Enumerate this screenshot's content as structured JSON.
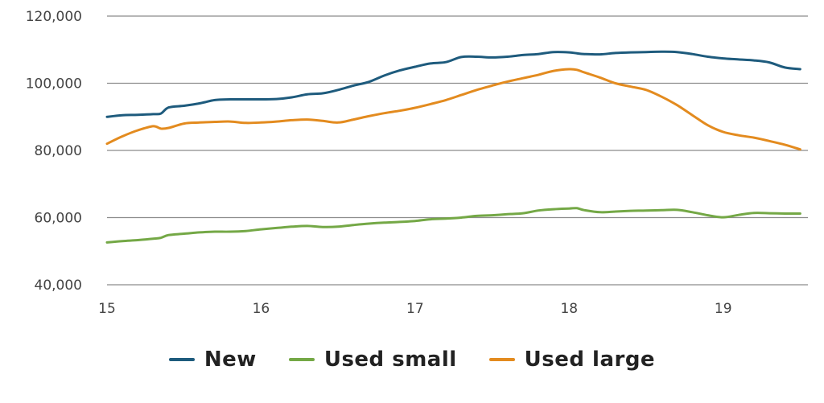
{
  "chart_data": {
    "type": "line",
    "title": "",
    "xlabel": "",
    "ylabel": "",
    "xlim": [
      15,
      19.55
    ],
    "ylim": [
      40000,
      120000
    ],
    "x_ticks": [
      15,
      16,
      17,
      18,
      19
    ],
    "x_tick_labels": [
      "15",
      "16",
      "17",
      "18",
      "19"
    ],
    "y_ticks": [
      40000,
      60000,
      80000,
      100000,
      120000
    ],
    "y_tick_labels": [
      "40,000",
      "60,000",
      "80,000",
      "100,000",
      "120,000"
    ],
    "grid": "horizontal",
    "legend_position": "bottom",
    "x": [
      15.0,
      15.1,
      15.2,
      15.3,
      15.35,
      15.4,
      15.5,
      15.6,
      15.7,
      15.8,
      15.9,
      16.0,
      16.1,
      16.2,
      16.3,
      16.4,
      16.5,
      16.6,
      16.7,
      16.8,
      16.9,
      17.0,
      17.1,
      17.2,
      17.3,
      17.4,
      17.5,
      17.6,
      17.7,
      17.8,
      17.9,
      18.0,
      18.05,
      18.1,
      18.2,
      18.3,
      18.4,
      18.5,
      18.6,
      18.7,
      18.8,
      18.9,
      19.0,
      19.1,
      19.2,
      19.3,
      19.4,
      19.5
    ],
    "series": [
      {
        "name": "New",
        "color": "#1e5b7d",
        "values": [
          90000,
          90500,
          90600,
          90800,
          91000,
          92800,
          93300,
          94000,
          95000,
          95200,
          95200,
          95200,
          95300,
          95800,
          96700,
          97000,
          98000,
          99300,
          100400,
          102300,
          103800,
          104900,
          105900,
          106300,
          107800,
          107900,
          107700,
          107900,
          108400,
          108700,
          109300,
          109200,
          108900,
          108700,
          108600,
          109000,
          109200,
          109300,
          109400,
          109300,
          108700,
          107900,
          107400,
          107100,
          106800,
          106200,
          104700,
          104200
        ]
      },
      {
        "name": "Used small",
        "color": "#74a846",
        "values": [
          52600,
          53000,
          53300,
          53700,
          54000,
          54800,
          55200,
          55600,
          55800,
          55800,
          56000,
          56500,
          56900,
          57300,
          57500,
          57200,
          57300,
          57800,
          58200,
          58500,
          58700,
          59000,
          59500,
          59700,
          60000,
          60500,
          60700,
          61000,
          61300,
          62100,
          62500,
          62700,
          62800,
          62200,
          61600,
          61800,
          62000,
          62100,
          62200,
          62300,
          61600,
          60700,
          60100,
          60800,
          61400,
          61300,
          61200,
          61200
        ]
      },
      {
        "name": "Used large",
        "color": "#e38b1f",
        "values": [
          82000,
          84200,
          86000,
          87200,
          86500,
          86700,
          88000,
          88300,
          88500,
          88600,
          88200,
          88300,
          88600,
          89000,
          89200,
          88800,
          88300,
          89200,
          90200,
          91100,
          91800,
          92700,
          93800,
          95000,
          96500,
          98000,
          99300,
          100500,
          101500,
          102500,
          103700,
          104200,
          104000,
          103200,
          101700,
          100000,
          99000,
          98000,
          96000,
          93500,
          90500,
          87500,
          85500,
          84500,
          83800,
          82800,
          81700,
          80300
        ]
      }
    ]
  }
}
